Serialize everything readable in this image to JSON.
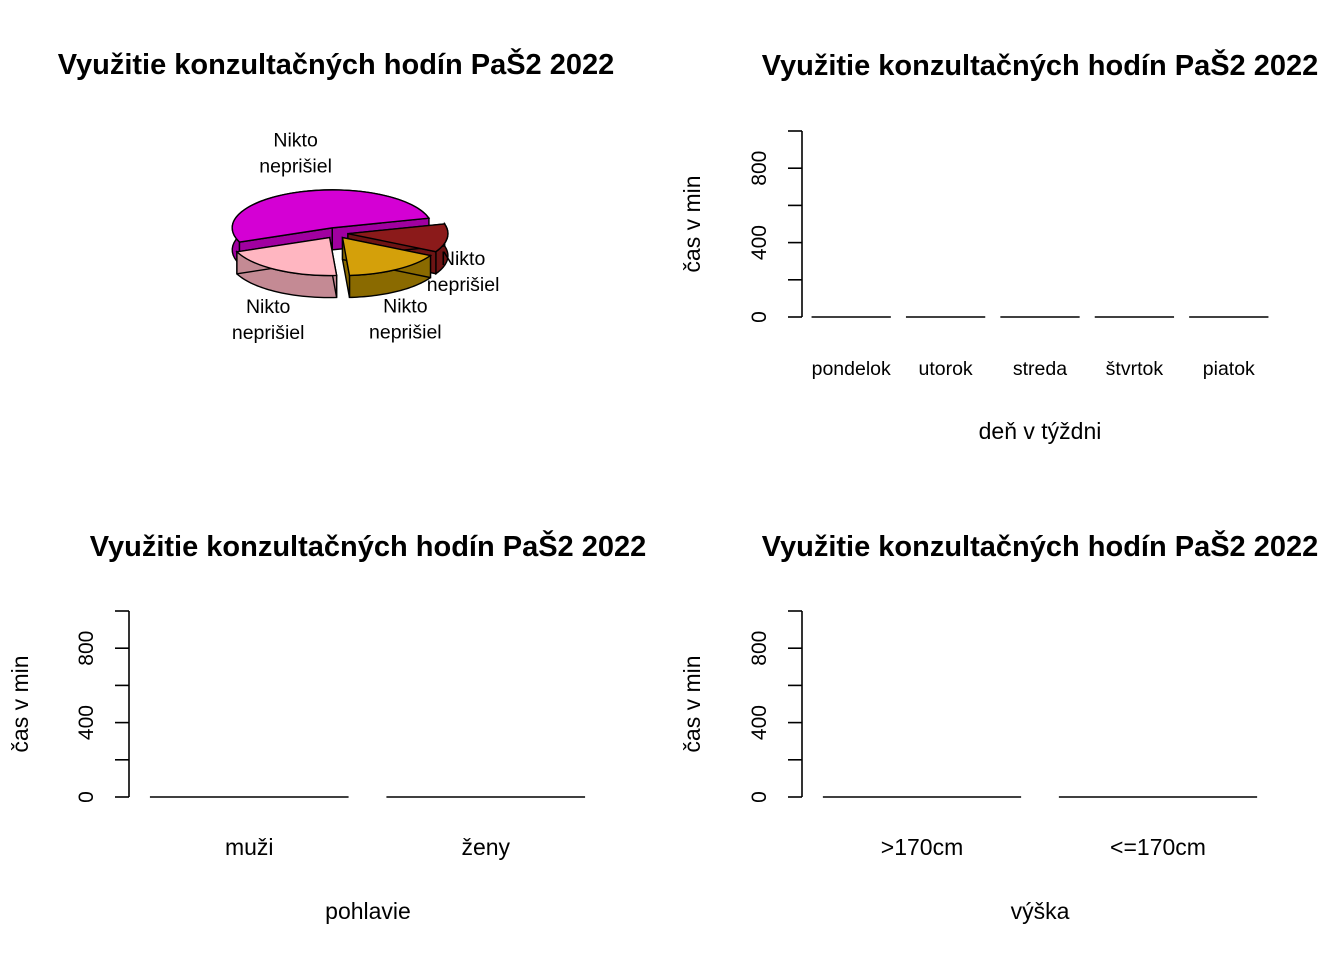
{
  "chart_data": [
    {
      "type": "pie",
      "style": "3d",
      "title": "Využitie konzultačných hodín PaŠ2 2022",
      "slices": [
        {
          "label": [
            "Nikto",
            "neprišiel"
          ],
          "value": 0.2,
          "color": "#FFB6C1",
          "side_color": "#C48A94",
          "explode": true
        },
        {
          "label": [
            "Nikto",
            "neprišiel"
          ],
          "value": 0.16,
          "color": "#D4A00A",
          "side_color": "#8A6A00",
          "explode": true
        },
        {
          "label": [
            "Nikto",
            "neprišiel"
          ],
          "value": 0.12,
          "color": "#8B1A1A",
          "side_color": "#6E1414",
          "explode": true
        },
        {
          "label": [
            "Nikto",
            "neprišiel"
          ],
          "value": 0.52,
          "color": "#D400D4",
          "side_color": "#A000A0",
          "explode": true
        }
      ]
    },
    {
      "type": "bar",
      "title": "Využitie konzultačných hodín PaŠ2 2022",
      "xlabel": "deň v týždni",
      "ylabel": "čas v min",
      "categories": [
        "pondelok",
        "utorok",
        "streda",
        "štvrtok",
        "piatok"
      ],
      "values": [
        0,
        0,
        0,
        0,
        0
      ],
      "ylim": [
        0,
        1000
      ],
      "yticks": [
        0,
        200,
        400,
        600,
        800,
        1000
      ],
      "ytick_labels": [
        "0",
        "",
        "400",
        "",
        "800",
        ""
      ]
    },
    {
      "type": "bar",
      "title": "Využitie konzultačných hodín PaŠ2 2022",
      "xlabel": "pohlavie",
      "ylabel": "čas v min",
      "categories": [
        "muži",
        "ženy"
      ],
      "values": [
        0,
        0
      ],
      "ylim": [
        0,
        1000
      ],
      "yticks": [
        0,
        200,
        400,
        600,
        800,
        1000
      ],
      "ytick_labels": [
        "0",
        "",
        "400",
        "",
        "800",
        ""
      ]
    },
    {
      "type": "bar",
      "title": "Využitie konzultačných hodín PaŠ2 2022",
      "xlabel": "výška",
      "ylabel": "čas v min",
      "categories": [
        ">170cm",
        "<=170cm"
      ],
      "values": [
        0,
        0
      ],
      "ylim": [
        0,
        1000
      ],
      "yticks": [
        0,
        200,
        400,
        600,
        800,
        1000
      ],
      "ytick_labels": [
        "0",
        "",
        "400",
        "",
        "800",
        ""
      ]
    }
  ]
}
